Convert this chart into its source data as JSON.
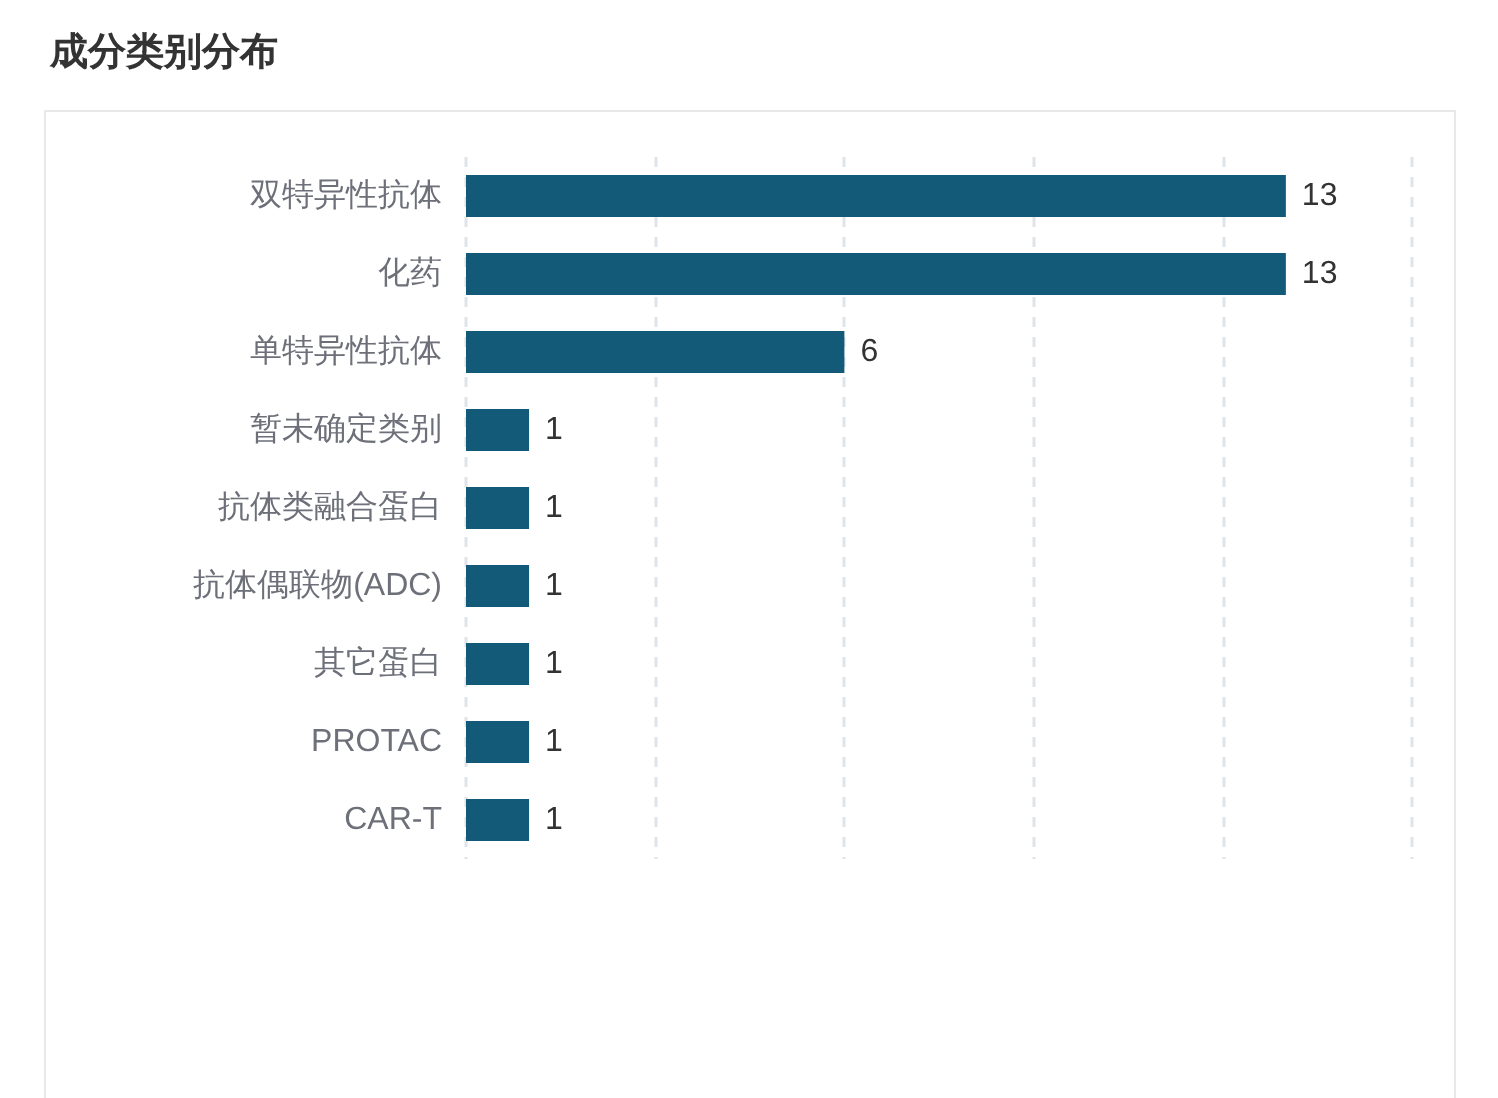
{
  "chart_data": {
    "type": "bar",
    "orientation": "horizontal",
    "title": "成分类别分布",
    "categories": [
      "双特异性抗体",
      "化药",
      "单特异性抗体",
      "暂未确定类别",
      "抗体类融合蛋白",
      "抗体偶联物(ADC)",
      "其它蛋白",
      "PROTAC",
      "CAR-T"
    ],
    "values": [
      13,
      13,
      6,
      1,
      1,
      1,
      1,
      1,
      1
    ],
    "color": "#125a78",
    "xlim": [
      0,
      15
    ],
    "xticks": [
      {
        "value": 0,
        "label": null
      },
      {
        "value": 3,
        "label": null
      },
      {
        "value": 6,
        "label": null
      },
      {
        "value": 9,
        "label": null
      },
      {
        "value": 12,
        "label": null
      },
      {
        "value": 15,
        "label": null
      }
    ],
    "tick_labels": "y",
    "grid": "x",
    "data_labels": true
  }
}
